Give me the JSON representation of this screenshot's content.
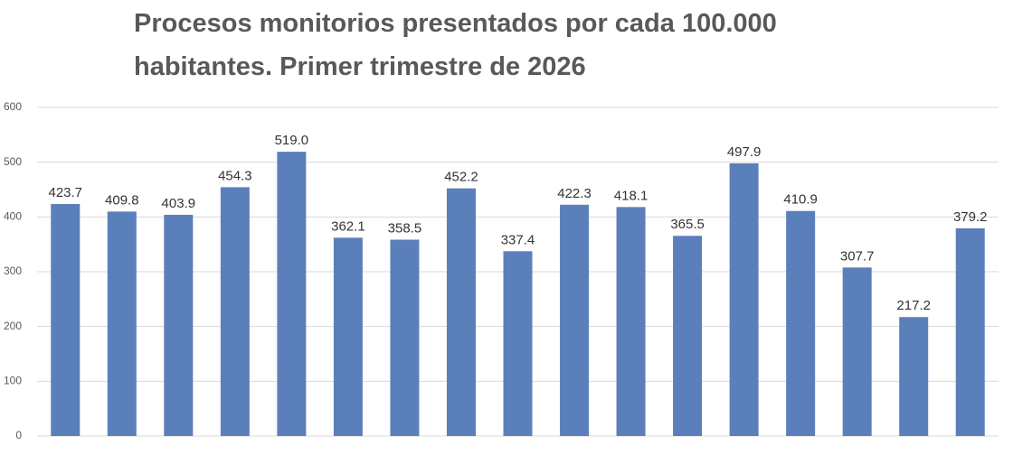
{
  "chart_data": {
    "type": "bar",
    "title": "Procesos monitorios presentados por cada 100.000 habitantes. Primer trimestre de 2026",
    "categories": [
      null,
      null,
      null,
      null,
      null,
      null,
      null,
      null,
      null,
      null,
      null,
      null,
      null,
      null,
      null,
      null,
      null
    ],
    "values": [
      423.7,
      409.8,
      403.9,
      454.3,
      519.0,
      362.1,
      358.5,
      452.2,
      337.4,
      422.3,
      418.1,
      365.5,
      497.9,
      410.9,
      307.7,
      217.2,
      379.2
    ],
    "value_labels": [
      "423.7",
      "409.8",
      "403.9",
      "454.3",
      "519.0",
      "362.1",
      "358.5",
      "452.2",
      "337.4",
      "422.3",
      "418.1",
      "365.5",
      "497.9",
      "410.9",
      "307.7",
      "217.2",
      "379.2"
    ],
    "color": "#5b7fba",
    "ylim": [
      0,
      600
    ],
    "yticks": [
      0,
      100,
      200,
      300,
      400,
      500,
      600
    ],
    "grid": true
  }
}
